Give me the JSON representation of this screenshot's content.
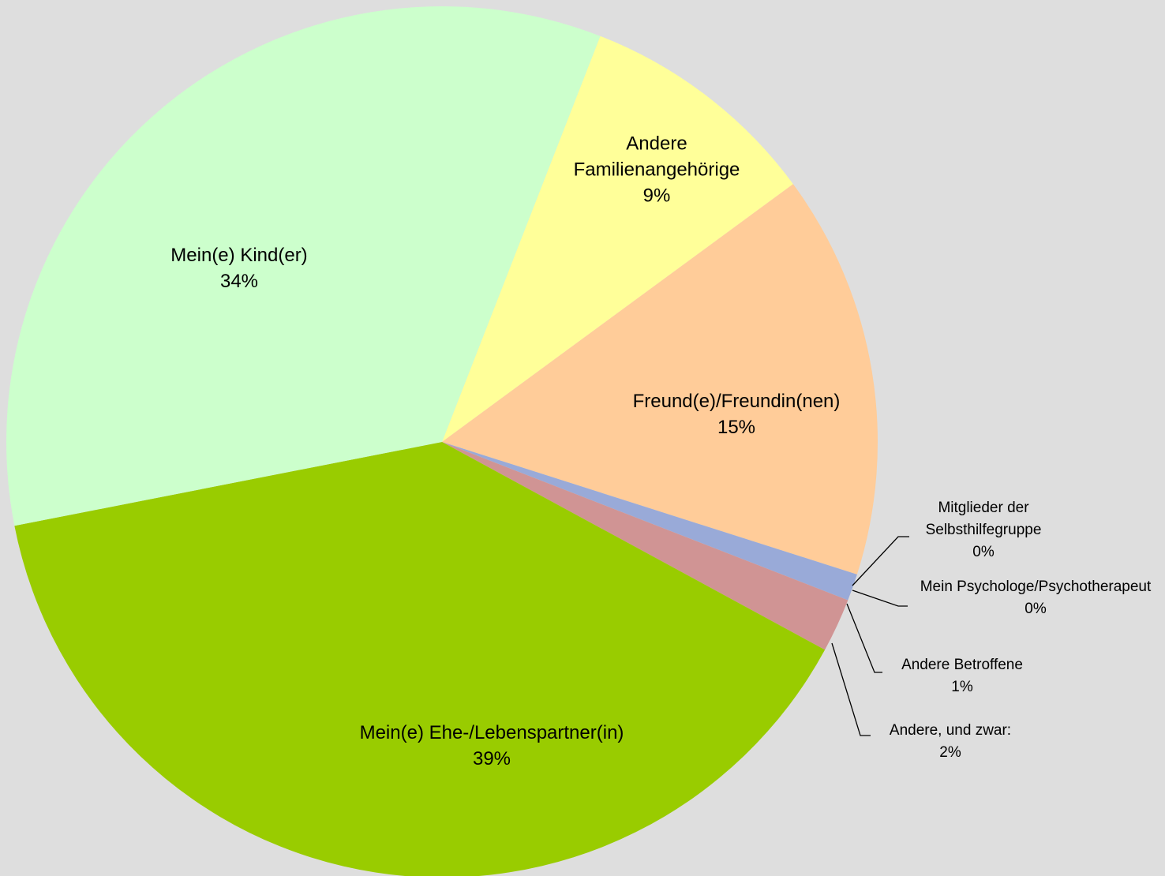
{
  "chart_data": {
    "type": "pie",
    "categories": [
      "Andere Familienangehörige",
      "Freund(e)/Freundin(nen)",
      "Mitglieder der Selbsthilfegruppe",
      "Mein Psychologe/Psychotherapeut",
      "Andere Betroffene",
      "Andere, und zwar:",
      "Mein(e) Ehe-/Lebenspartner(in)",
      "Mein(e) Kind(er)"
    ],
    "values": [
      9,
      15,
      0,
      0,
      1,
      2,
      39,
      34
    ],
    "value_labels": [
      "9%",
      "15%",
      "0%",
      "0%",
      "1%",
      "2%",
      "39%",
      "34%"
    ],
    "colors": [
      "#ffff99",
      "#ffcc99",
      "#c0c0ff",
      "#ffccff",
      "#99aad8",
      "#d09494",
      "#99cc00",
      "#ccffcc"
    ]
  }
}
